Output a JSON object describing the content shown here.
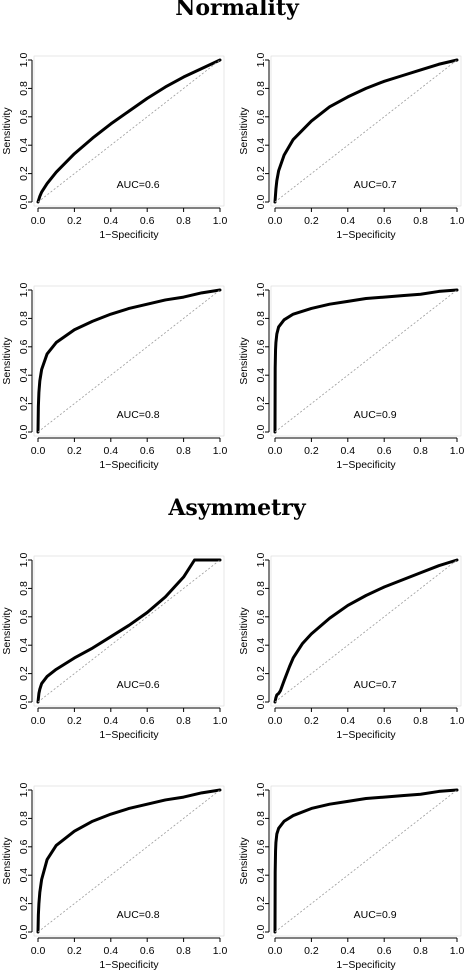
{
  "sections": [
    {
      "title": "Normality"
    },
    {
      "title": "Asymmetry"
    }
  ],
  "chart_data": [
    {
      "type": "line",
      "section": "Normality",
      "annotation": "AUC=0.6",
      "xlabel": "1−Specificity",
      "ylabel": "Sensitivity",
      "xlim": [
        0,
        1
      ],
      "ylim": [
        0,
        1
      ],
      "xticks": [
        "0.0",
        "0.2",
        "0.4",
        "0.6",
        "0.8",
        "1.0"
      ],
      "yticks": [
        "0.0",
        "0.2",
        "0.4",
        "0.6",
        "0.8",
        "1.0"
      ],
      "series": [
        {
          "role": "roc",
          "x": [
            0,
            0.01,
            0.02,
            0.05,
            0.1,
            0.2,
            0.3,
            0.4,
            0.5,
            0.6,
            0.7,
            0.8,
            0.9,
            1.0
          ],
          "y": [
            0,
            0.04,
            0.07,
            0.13,
            0.21,
            0.34,
            0.45,
            0.55,
            0.64,
            0.73,
            0.81,
            0.88,
            0.94,
            1.0
          ]
        },
        {
          "role": "chance",
          "x": [
            0,
            1
          ],
          "y": [
            0,
            1
          ]
        }
      ]
    },
    {
      "type": "line",
      "section": "Normality",
      "annotation": "AUC=0.7",
      "xlabel": "1−Specificity",
      "ylabel": "Sensitivity",
      "xlim": [
        0,
        1
      ],
      "ylim": [
        0,
        1
      ],
      "xticks": [
        "0.0",
        "0.2",
        "0.4",
        "0.6",
        "0.8",
        "1.0"
      ],
      "yticks": [
        "0.0",
        "0.2",
        "0.4",
        "0.6",
        "0.8",
        "1.0"
      ],
      "series": [
        {
          "role": "roc",
          "x": [
            0,
            0.005,
            0.01,
            0.02,
            0.05,
            0.1,
            0.2,
            0.3,
            0.4,
            0.5,
            0.6,
            0.7,
            0.8,
            0.9,
            1.0
          ],
          "y": [
            0,
            0.09,
            0.15,
            0.22,
            0.33,
            0.44,
            0.57,
            0.67,
            0.74,
            0.8,
            0.85,
            0.89,
            0.93,
            0.97,
            1.0
          ]
        },
        {
          "role": "chance",
          "x": [
            0,
            1
          ],
          "y": [
            0,
            1
          ]
        }
      ]
    },
    {
      "type": "line",
      "section": "Normality",
      "annotation": "AUC=0.8",
      "xlabel": "1−Specificity",
      "ylabel": "Sensitivity",
      "xlim": [
        0,
        1
      ],
      "ylim": [
        0,
        1
      ],
      "xticks": [
        "0.0",
        "0.2",
        "0.4",
        "0.6",
        "0.8",
        "1.0"
      ],
      "yticks": [
        "0.0",
        "0.2",
        "0.4",
        "0.6",
        "0.8",
        "1.0"
      ],
      "series": [
        {
          "role": "roc",
          "x": [
            0,
            0.002,
            0.005,
            0.01,
            0.02,
            0.05,
            0.1,
            0.2,
            0.3,
            0.4,
            0.5,
            0.6,
            0.7,
            0.8,
            0.9,
            1.0
          ],
          "y": [
            0,
            0.18,
            0.28,
            0.36,
            0.44,
            0.55,
            0.63,
            0.72,
            0.78,
            0.83,
            0.87,
            0.9,
            0.93,
            0.95,
            0.98,
            1.0
          ]
        },
        {
          "role": "chance",
          "x": [
            0,
            1
          ],
          "y": [
            0,
            1
          ]
        }
      ]
    },
    {
      "type": "line",
      "section": "Normality",
      "annotation": "AUC=0.9",
      "xlabel": "1−Specificity",
      "ylabel": "Sensitivity",
      "xlim": [
        0,
        1
      ],
      "ylim": [
        0,
        1
      ],
      "xticks": [
        "0.0",
        "0.2",
        "0.4",
        "0.6",
        "0.8",
        "1.0"
      ],
      "yticks": [
        "0.0",
        "0.2",
        "0.4",
        "0.6",
        "0.8",
        "1.0"
      ],
      "series": [
        {
          "role": "roc",
          "x": [
            0,
            0.001,
            0.003,
            0.005,
            0.01,
            0.02,
            0.05,
            0.1,
            0.2,
            0.3,
            0.4,
            0.5,
            0.6,
            0.7,
            0.8,
            0.9,
            1.0
          ],
          "y": [
            0,
            0.45,
            0.58,
            0.63,
            0.69,
            0.74,
            0.79,
            0.83,
            0.87,
            0.9,
            0.92,
            0.94,
            0.95,
            0.96,
            0.97,
            0.99,
            1.0
          ]
        },
        {
          "role": "chance",
          "x": [
            0,
            1
          ],
          "y": [
            0,
            1
          ]
        }
      ]
    },
    {
      "type": "line",
      "section": "Asymmetry",
      "annotation": "AUC=0.6",
      "xlabel": "1−Specificity",
      "ylabel": "Sensitivity",
      "xlim": [
        0,
        1
      ],
      "ylim": [
        0,
        1
      ],
      "xticks": [
        "0.0",
        "0.2",
        "0.4",
        "0.6",
        "0.8",
        "1.0"
      ],
      "yticks": [
        "0.0",
        "0.2",
        "0.4",
        "0.6",
        "0.8",
        "1.0"
      ],
      "series": [
        {
          "role": "roc",
          "x": [
            0,
            0.005,
            0.01,
            0.02,
            0.05,
            0.1,
            0.2,
            0.3,
            0.4,
            0.5,
            0.6,
            0.7,
            0.8,
            0.86,
            0.9,
            1.0
          ],
          "y": [
            0,
            0.06,
            0.09,
            0.13,
            0.18,
            0.23,
            0.31,
            0.38,
            0.46,
            0.54,
            0.63,
            0.74,
            0.88,
            1.0,
            1.0,
            1.0
          ]
        },
        {
          "role": "chance",
          "x": [
            0,
            1
          ],
          "y": [
            0,
            1
          ]
        }
      ]
    },
    {
      "type": "line",
      "section": "Asymmetry",
      "annotation": "AUC=0.7",
      "xlabel": "1−Specificity",
      "ylabel": "Sensitivity",
      "xlim": [
        0,
        1
      ],
      "ylim": [
        0,
        1
      ],
      "xticks": [
        "0.0",
        "0.2",
        "0.4",
        "0.6",
        "0.8",
        "1.0"
      ],
      "yticks": [
        "0.0",
        "0.2",
        "0.4",
        "0.6",
        "0.8",
        "1.0"
      ],
      "series": [
        {
          "role": "roc",
          "x": [
            0,
            0.005,
            0.01,
            0.02,
            0.03,
            0.05,
            0.08,
            0.1,
            0.15,
            0.2,
            0.3,
            0.4,
            0.5,
            0.6,
            0.7,
            0.8,
            0.9,
            1.0
          ],
          "y": [
            0,
            0.03,
            0.05,
            0.06,
            0.08,
            0.15,
            0.25,
            0.31,
            0.41,
            0.48,
            0.59,
            0.68,
            0.75,
            0.81,
            0.86,
            0.91,
            0.96,
            1.0
          ]
        },
        {
          "role": "chance",
          "x": [
            0,
            1
          ],
          "y": [
            0,
            1
          ]
        }
      ]
    },
    {
      "type": "line",
      "section": "Asymmetry",
      "annotation": "AUC=0.8",
      "xlabel": "1−Specificity",
      "ylabel": "Sensitivity",
      "xlim": [
        0,
        1
      ],
      "ylim": [
        0,
        1
      ],
      "xticks": [
        "0.0",
        "0.2",
        "0.4",
        "0.6",
        "0.8",
        "1.0"
      ],
      "yticks": [
        "0.0",
        "0.2",
        "0.4",
        "0.6",
        "0.8",
        "1.0"
      ],
      "series": [
        {
          "role": "roc",
          "x": [
            0,
            0.002,
            0.005,
            0.01,
            0.02,
            0.05,
            0.1,
            0.2,
            0.3,
            0.4,
            0.5,
            0.6,
            0.7,
            0.8,
            0.9,
            1.0
          ],
          "y": [
            0,
            0.12,
            0.2,
            0.28,
            0.37,
            0.51,
            0.61,
            0.71,
            0.78,
            0.83,
            0.87,
            0.9,
            0.93,
            0.95,
            0.98,
            1.0
          ]
        },
        {
          "role": "chance",
          "x": [
            0,
            1
          ],
          "y": [
            0,
            1
          ]
        }
      ]
    },
    {
      "type": "line",
      "section": "Asymmetry",
      "annotation": "AUC=0.9",
      "xlabel": "1−Specificity",
      "ylabel": "Sensitivity",
      "xlim": [
        0,
        1
      ],
      "ylim": [
        0,
        1
      ],
      "xticks": [
        "0.0",
        "0.2",
        "0.4",
        "0.6",
        "0.8",
        "1.0"
      ],
      "yticks": [
        "0.0",
        "0.2",
        "0.4",
        "0.6",
        "0.8",
        "1.0"
      ],
      "series": [
        {
          "role": "roc",
          "x": [
            0,
            0.001,
            0.003,
            0.005,
            0.01,
            0.02,
            0.05,
            0.1,
            0.2,
            0.3,
            0.4,
            0.5,
            0.6,
            0.7,
            0.8,
            0.9,
            1.0
          ],
          "y": [
            0,
            0.42,
            0.57,
            0.63,
            0.69,
            0.73,
            0.78,
            0.82,
            0.87,
            0.9,
            0.92,
            0.94,
            0.95,
            0.96,
            0.97,
            0.99,
            1.0
          ]
        },
        {
          "role": "chance",
          "x": [
            0,
            1
          ],
          "y": [
            0,
            1
          ]
        }
      ]
    }
  ]
}
